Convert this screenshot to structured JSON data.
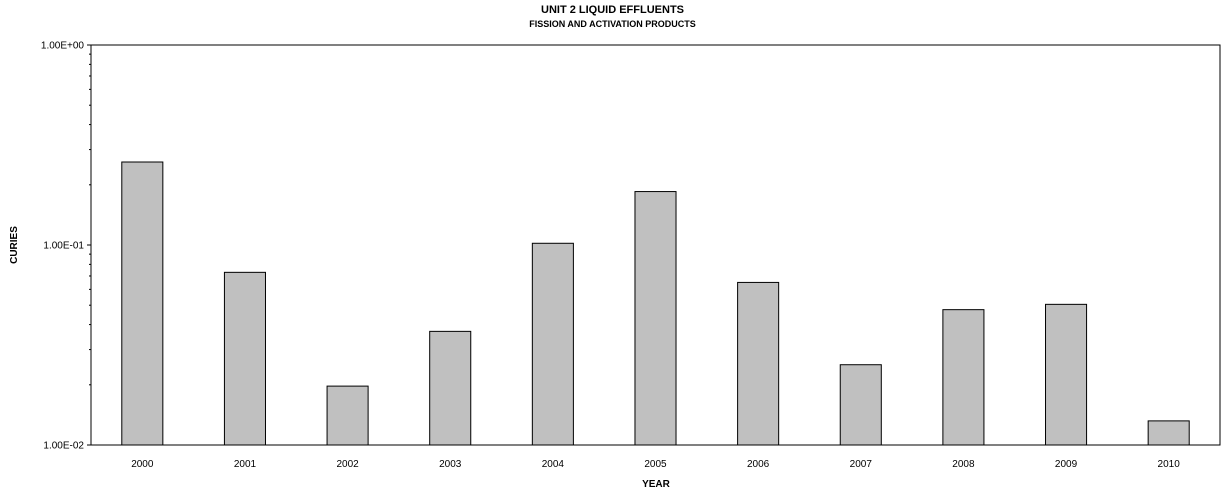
{
  "chart_data": {
    "type": "bar",
    "title": "UNIT 2 LIQUID EFFLUENTS",
    "subtitle": "FISSION AND ACTIVATION PRODUCTS",
    "xlabel": "YEAR",
    "ylabel": "CURIES",
    "y_scale": "log",
    "ylim": [
      0.01,
      1.0
    ],
    "ytick_labels": [
      "1.00E-02",
      "1.00E-01",
      "1.00E+00"
    ],
    "grid": false,
    "bar_color": "#c0c0c0",
    "categories": [
      "2000",
      "2001",
      "2002",
      "2003",
      "2004",
      "2005",
      "2006",
      "2007",
      "2008",
      "2009",
      "2010"
    ],
    "values": [
      0.26,
      0.073,
      0.0197,
      0.037,
      0.102,
      0.185,
      0.065,
      0.0252,
      0.0475,
      0.0505,
      0.0132
    ]
  }
}
